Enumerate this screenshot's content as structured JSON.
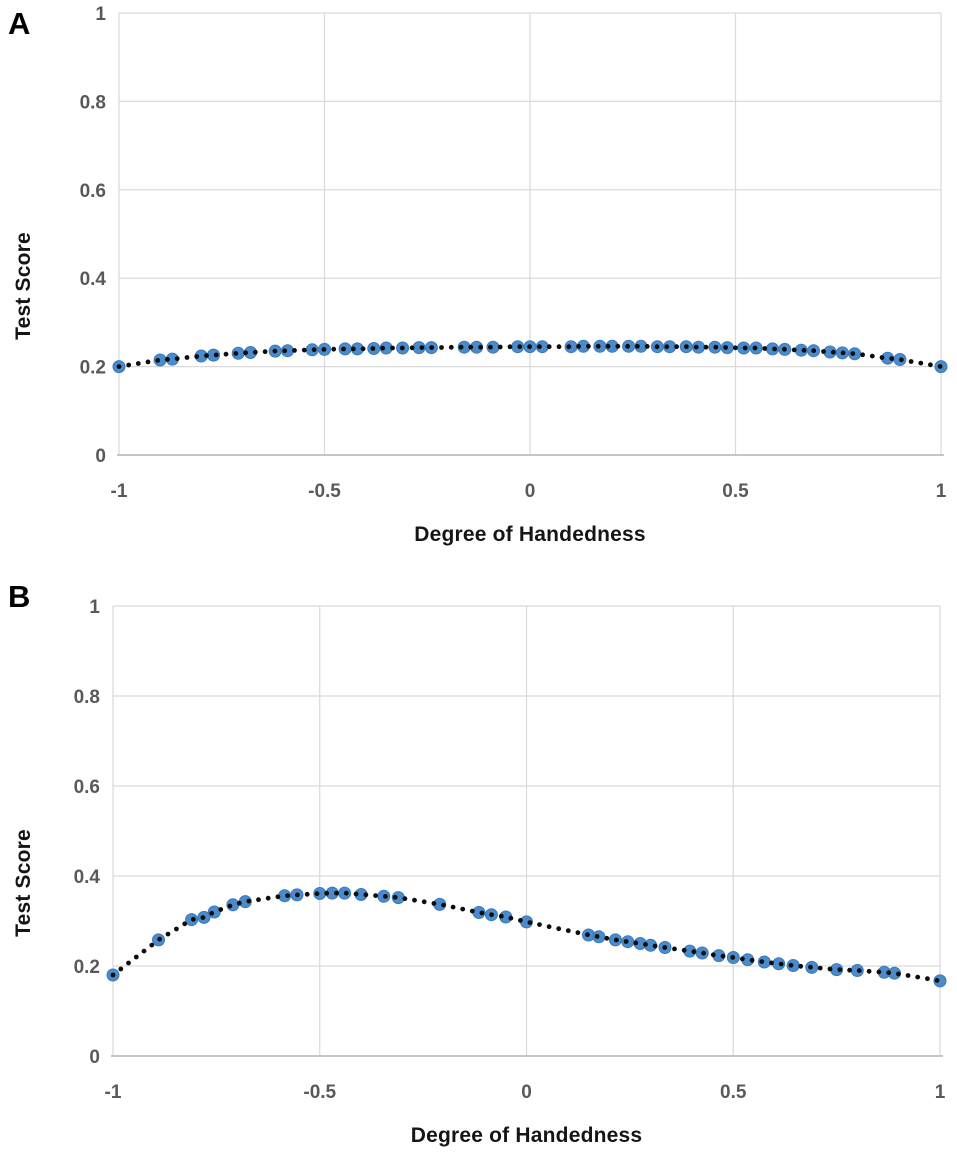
{
  "figure": {
    "background": "#ffffff",
    "description": "Two-panel scatter figure of Test Score versus Degree of Handedness"
  },
  "colors": {
    "marker_fill": "#4b8bcb",
    "marker_stroke": "#3a7ab8",
    "trend_dot": "#0d0d0d",
    "gridline": "#d9d9d9",
    "axis_line": "#bdbdbd",
    "tick_label": "#595959",
    "axis_title": "#151515",
    "panel_letter": "#000000"
  },
  "chart_data": [
    {
      "panel": "A",
      "type": "scatter",
      "xlabel": "Degree of Handedness",
      "ylabel": "Test  Score",
      "xlim": [
        -1,
        1
      ],
      "ylim": [
        0,
        1
      ],
      "xticks": [
        -1,
        -0.5,
        0,
        0.5,
        1
      ],
      "xtick_labels": [
        "-1",
        "-0.5",
        "0",
        "0.5",
        "1"
      ],
      "yticks": [
        0,
        0.2,
        0.4,
        0.6,
        0.8,
        1
      ],
      "ytick_labels": [
        "0",
        "0.2",
        "0.4",
        "0.6",
        "0.8",
        "1"
      ],
      "grid": true,
      "legend": "none",
      "trendline_style": "dotted",
      "points": [
        [
          -1.0,
          0.2
        ],
        [
          -0.9,
          0.215
        ],
        [
          -0.87,
          0.217
        ],
        [
          -0.8,
          0.224
        ],
        [
          -0.77,
          0.226
        ],
        [
          -0.71,
          0.23
        ],
        [
          -0.68,
          0.232
        ],
        [
          -0.62,
          0.235
        ],
        [
          -0.59,
          0.236
        ],
        [
          -0.53,
          0.238
        ],
        [
          -0.5,
          0.239
        ],
        [
          -0.45,
          0.24
        ],
        [
          -0.42,
          0.24
        ],
        [
          -0.38,
          0.241
        ],
        [
          -0.35,
          0.242
        ],
        [
          -0.31,
          0.242
        ],
        [
          -0.27,
          0.243
        ],
        [
          -0.24,
          0.243
        ],
        [
          -0.16,
          0.244
        ],
        [
          -0.13,
          0.244
        ],
        [
          -0.09,
          0.244
        ],
        [
          -0.03,
          0.245
        ],
        [
          0.0,
          0.245
        ],
        [
          0.03,
          0.245
        ],
        [
          0.1,
          0.245
        ],
        [
          0.13,
          0.246
        ],
        [
          0.17,
          0.246
        ],
        [
          0.2,
          0.246
        ],
        [
          0.24,
          0.246
        ],
        [
          0.27,
          0.246
        ],
        [
          0.31,
          0.245
        ],
        [
          0.34,
          0.245
        ],
        [
          0.38,
          0.245
        ],
        [
          0.41,
          0.244
        ],
        [
          0.45,
          0.244
        ],
        [
          0.48,
          0.243
        ],
        [
          0.52,
          0.242
        ],
        [
          0.55,
          0.242
        ],
        [
          0.59,
          0.24
        ],
        [
          0.62,
          0.239
        ],
        [
          0.66,
          0.237
        ],
        [
          0.69,
          0.236
        ],
        [
          0.73,
          0.233
        ],
        [
          0.76,
          0.231
        ],
        [
          0.79,
          0.229
        ],
        [
          0.87,
          0.219
        ],
        [
          0.9,
          0.216
        ],
        [
          1.0,
          0.2
        ]
      ]
    },
    {
      "panel": "B",
      "type": "scatter",
      "xlabel": "Degree of Handedness",
      "ylabel": "Test Score",
      "xlim": [
        -1,
        1
      ],
      "ylim": [
        0,
        1
      ],
      "xticks": [
        -1,
        -0.5,
        0,
        0.5,
        1
      ],
      "xtick_labels": [
        "-1",
        "-0.5",
        "0",
        "0.5",
        "1"
      ],
      "yticks": [
        0,
        0.2,
        0.4,
        0.6,
        0.8,
        1
      ],
      "ytick_labels": [
        "0",
        "0.2",
        "0.4",
        "0.6",
        "0.8",
        "1"
      ],
      "grid": true,
      "legend": "none",
      "trendline_style": "dotted",
      "points": [
        [
          -1.0,
          0.18
        ],
        [
          -0.89,
          0.258
        ],
        [
          -0.81,
          0.303
        ],
        [
          -0.78,
          0.308
        ],
        [
          -0.755,
          0.32
        ],
        [
          -0.71,
          0.336
        ],
        [
          -0.68,
          0.343
        ],
        [
          -0.585,
          0.356
        ],
        [
          -0.555,
          0.358
        ],
        [
          -0.5,
          0.361
        ],
        [
          -0.47,
          0.362
        ],
        [
          -0.44,
          0.362
        ],
        [
          -0.4,
          0.359
        ],
        [
          -0.345,
          0.355
        ],
        [
          -0.31,
          0.352
        ],
        [
          -0.21,
          0.337
        ],
        [
          -0.115,
          0.319
        ],
        [
          -0.085,
          0.314
        ],
        [
          -0.05,
          0.309
        ],
        [
          0.0,
          0.298
        ],
        [
          0.15,
          0.269
        ],
        [
          0.175,
          0.265
        ],
        [
          0.215,
          0.258
        ],
        [
          0.245,
          0.254
        ],
        [
          0.275,
          0.25
        ],
        [
          0.3,
          0.246
        ],
        [
          0.335,
          0.241
        ],
        [
          0.395,
          0.233
        ],
        [
          0.425,
          0.229
        ],
        [
          0.465,
          0.223
        ],
        [
          0.5,
          0.219
        ],
        [
          0.535,
          0.214
        ],
        [
          0.575,
          0.209
        ],
        [
          0.61,
          0.205
        ],
        [
          0.645,
          0.201
        ],
        [
          0.69,
          0.197
        ],
        [
          0.75,
          0.192
        ],
        [
          0.8,
          0.19
        ],
        [
          0.865,
          0.186
        ],
        [
          0.89,
          0.184
        ],
        [
          1.0,
          0.167
        ]
      ]
    }
  ]
}
